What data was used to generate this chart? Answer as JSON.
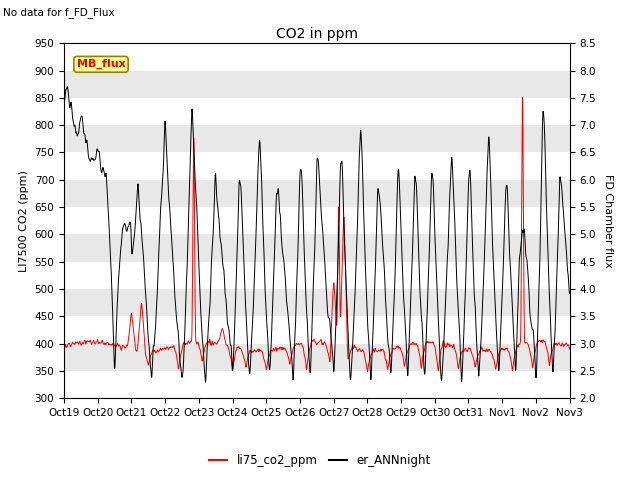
{
  "title": "CO2 in ppm",
  "top_left_text": "No data for f_FD_Flux",
  "ylabel_left": "LI7500 CO2 (ppm)",
  "ylabel_right": "FD Chamber flux",
  "ylim_left": [
    300,
    950
  ],
  "ylim_right": [
    2.0,
    8.5
  ],
  "yticks_left": [
    300,
    350,
    400,
    450,
    500,
    550,
    600,
    650,
    700,
    750,
    800,
    850,
    900,
    950
  ],
  "yticks_right": [
    2.0,
    2.5,
    3.0,
    3.5,
    4.0,
    4.5,
    5.0,
    5.5,
    6.0,
    6.5,
    7.0,
    7.5,
    8.0,
    8.5
  ],
  "xtick_labels": [
    "Oct 19",
    "Oct 20",
    "Oct 21",
    "Oct 22",
    "Oct 23",
    "Oct 24",
    "Oct 25",
    "Oct 26",
    "Oct 27",
    "Oct 28",
    "Oct 29",
    "Oct 30",
    "Oct 31",
    "Nov 1",
    "Nov 2",
    "Nov 3"
  ],
  "line_red_label": "li75_co2_ppm",
  "line_black_label": "er_ANNnight",
  "mb_flux_label": "MB_flux",
  "bg_color": "#e8e8e8",
  "band_color": "#ffffff",
  "red_color": "#ff0000",
  "black_color": "#000000",
  "title_fontsize": 10,
  "label_fontsize": 8,
  "tick_fontsize": 7.5
}
